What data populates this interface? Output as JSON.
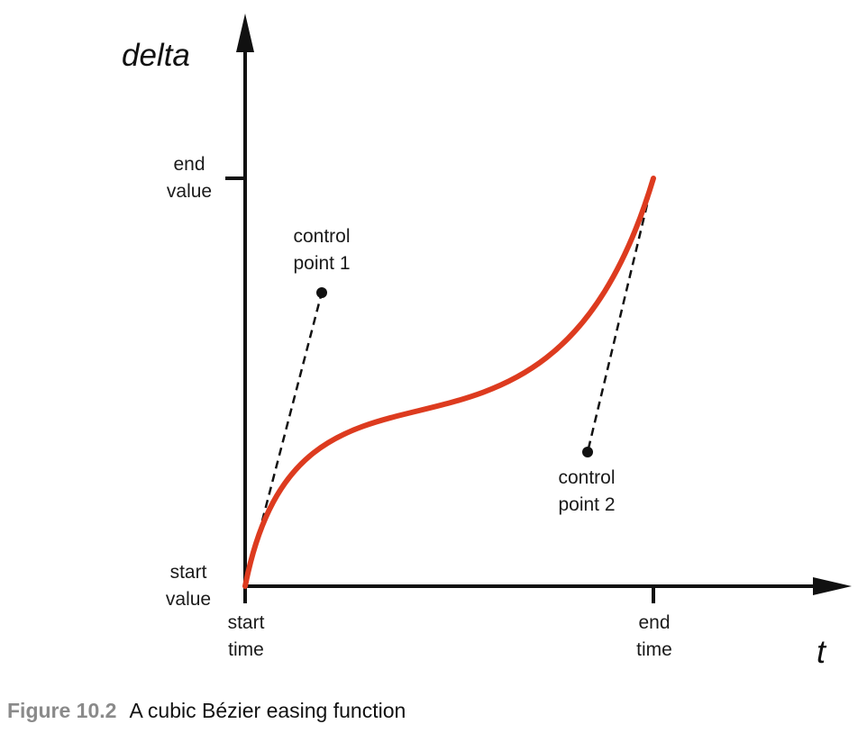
{
  "axes": {
    "y_title": "delta",
    "x_title": "t",
    "y_ticks": [
      {
        "line1": "end",
        "line2": "value"
      },
      {
        "line1": "start",
        "line2": "value"
      }
    ],
    "x_ticks": [
      {
        "line1": "start",
        "line2": "time"
      },
      {
        "line1": "end",
        "line2": "time"
      }
    ]
  },
  "control_points": [
    {
      "line1": "control",
      "line2": "point 1"
    },
    {
      "line1": "control",
      "line2": "point 2"
    }
  ],
  "caption": {
    "figure_number": "Figure 10.2",
    "text": "A cubic Bézier easing function"
  },
  "colors": {
    "curve": "#dd3b1f",
    "axes": "#111111",
    "caption_number": "#8a8a8a"
  }
}
